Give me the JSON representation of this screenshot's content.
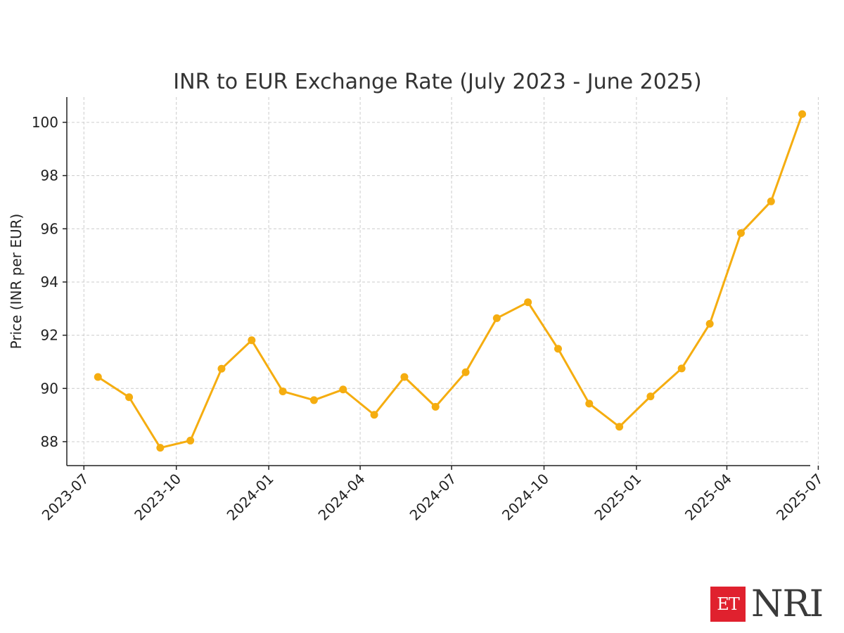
{
  "chart_data": {
    "type": "line",
    "title": "INR to EUR Exchange Rate (July 2023 - June 2025)",
    "xlabel": "",
    "ylabel": "Price (INR per EUR)",
    "x": [
      "2023-07",
      "2023-08",
      "2023-09",
      "2023-10",
      "2023-11",
      "2023-12",
      "2024-01",
      "2024-02",
      "2024-03",
      "2024-04",
      "2024-05",
      "2024-06",
      "2024-07",
      "2024-08",
      "2024-09",
      "2024-10",
      "2024-11",
      "2024-12",
      "2025-01",
      "2025-02",
      "2025-03",
      "2025-04",
      "2025-05",
      "2025-06"
    ],
    "values": [
      90.43,
      89.67,
      87.77,
      88.04,
      90.74,
      91.81,
      89.89,
      89.56,
      89.96,
      89.01,
      90.43,
      89.31,
      90.61,
      92.64,
      93.24,
      91.49,
      89.43,
      88.56,
      89.7,
      90.75,
      92.43,
      95.84,
      97.03,
      100.31
    ],
    "x_ticks": [
      "2023-07",
      "2023-10",
      "2024-01",
      "2024-04",
      "2024-07",
      "2024-10",
      "2025-01",
      "2025-04",
      "2025-07"
    ],
    "y_ticks": [
      88,
      90,
      92,
      94,
      96,
      98,
      100
    ],
    "xlim": [
      "2023-06-14",
      "2025-06-23"
    ],
    "ylim": [
      87.1,
      100.95
    ],
    "grid": true,
    "line_color": "#f5ad10"
  },
  "logo": {
    "et": "ET",
    "nri": "NRI"
  }
}
